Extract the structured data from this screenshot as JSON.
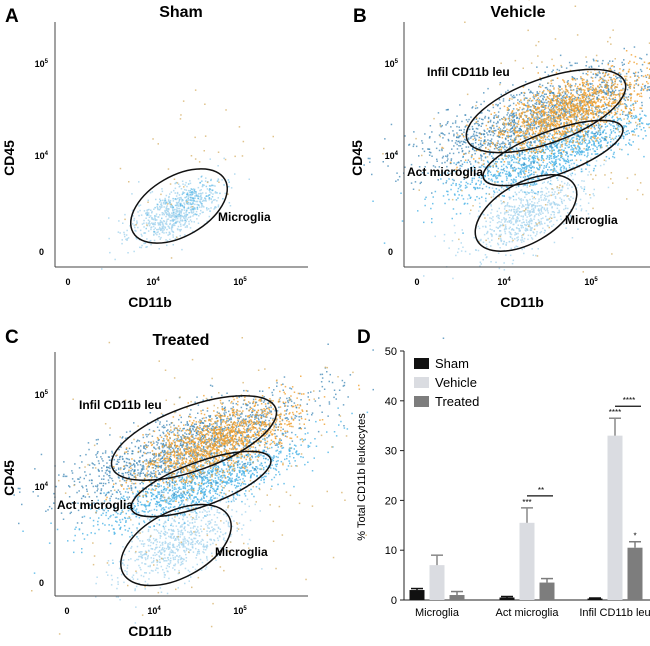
{
  "panels": [
    {
      "letter": "A",
      "title": "Sham",
      "xlabel": "CD11b",
      "ylabel": "CD45",
      "xticks": [
        {
          "base": "0",
          "exp": ""
        },
        {
          "base": "10",
          "exp": "4"
        },
        {
          "base": "10",
          "exp": "5"
        }
      ],
      "yticks": [
        {
          "base": "0",
          "exp": ""
        },
        {
          "base": "10",
          "exp": "4"
        },
        {
          "base": "10",
          "exp": "5"
        }
      ],
      "gates": [
        {
          "label": "Microglia"
        }
      ]
    },
    {
      "letter": "B",
      "title": "Vehicle",
      "xlabel": "CD11b",
      "ylabel": "CD45",
      "xticks": [
        {
          "base": "0",
          "exp": ""
        },
        {
          "base": "10",
          "exp": "4"
        },
        {
          "base": "10",
          "exp": "5"
        }
      ],
      "yticks": [
        {
          "base": "0",
          "exp": ""
        },
        {
          "base": "10",
          "exp": "4"
        },
        {
          "base": "10",
          "exp": "5"
        }
      ],
      "gates": [
        {
          "label": "Infil CD11b leu"
        },
        {
          "label": "Act microglia"
        },
        {
          "label": "Microglia"
        }
      ]
    },
    {
      "letter": "C",
      "title": "Treated",
      "xlabel": "CD11b",
      "ylabel": "CD45",
      "xticks": [
        {
          "base": "0",
          "exp": ""
        },
        {
          "base": "10",
          "exp": "4"
        },
        {
          "base": "10",
          "exp": "5"
        }
      ],
      "yticks": [
        {
          "base": "0",
          "exp": ""
        },
        {
          "base": "10",
          "exp": "4"
        },
        {
          "base": "10",
          "exp": "5"
        }
      ],
      "gates": [
        {
          "label": "Infil CD11b leu"
        },
        {
          "label": "Act microglia"
        },
        {
          "label": "Microglia"
        }
      ]
    }
  ],
  "colors": {
    "microglia": "#a9d6ef",
    "active": "#4ab3e6",
    "infiltrating": "#3f87b6",
    "high": "#f0a030",
    "outlier": "#d8b46e"
  },
  "chart_data": {
    "type": "bar",
    "letter": "D",
    "ylabel": "% Total CD11b leukocytes",
    "ylim": [
      0,
      50
    ],
    "yticks": [
      0,
      10,
      20,
      30,
      40,
      50
    ],
    "categories": [
      "Microglia",
      "Act microglia",
      "Infil CD11b leu"
    ],
    "legend_position": "top-left",
    "series": [
      {
        "name": "Sham",
        "color": "#111111",
        "values": [
          2.0,
          0.5,
          0.3
        ],
        "errors": [
          0.3,
          0.2,
          0.1
        ]
      },
      {
        "name": "Vehicle",
        "color": "#dadce1",
        "values": [
          7.0,
          15.5,
          33.0
        ],
        "errors": [
          2.0,
          3.0,
          3.5
        ]
      },
      {
        "name": "Treated",
        "color": "#7d7d7d",
        "values": [
          1.0,
          3.5,
          10.5
        ],
        "errors": [
          0.7,
          0.8,
          1.2
        ]
      }
    ],
    "annotations": [
      {
        "category": "Act microglia",
        "series": "Vehicle",
        "text": "***"
      },
      {
        "category": "Act microglia",
        "text": "**",
        "between": [
          "Vehicle",
          "Treated"
        ]
      },
      {
        "category": "Infil CD11b leu",
        "series": "Vehicle",
        "text": "****"
      },
      {
        "category": "Infil CD11b leu",
        "text": "****",
        "between": [
          "Vehicle",
          "Treated"
        ]
      },
      {
        "category": "Infil CD11b leu",
        "series": "Treated",
        "text": "*"
      }
    ]
  }
}
